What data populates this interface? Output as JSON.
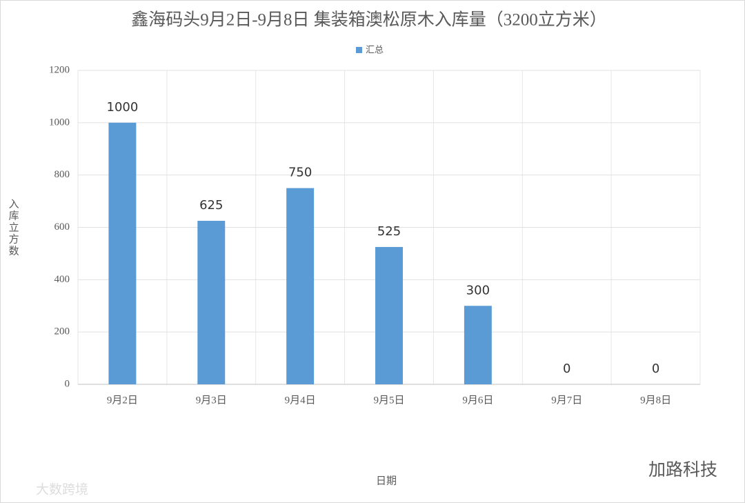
{
  "chart_data": {
    "type": "bar",
    "title": "鑫海码头9月2日-9月8日 集装箱澳松原木入库量（3200立方米）",
    "legend": "汇总",
    "x_label": "日期",
    "y_label": "入库立方数",
    "categories": [
      "9月2日",
      "9月3日",
      "9月4日",
      "9月5日",
      "9月6日",
      "9月7日",
      "9月8日"
    ],
    "values": [
      1000,
      625,
      750,
      525,
      300,
      0,
      0
    ],
    "color": "#5b9bd5",
    "ylim": [
      0,
      1200
    ],
    "yticks": [
      0,
      200,
      400,
      600,
      800,
      1000,
      1200
    ],
    "grid": true,
    "watermarks": [
      "加路科技",
      "大数跨境"
    ]
  }
}
